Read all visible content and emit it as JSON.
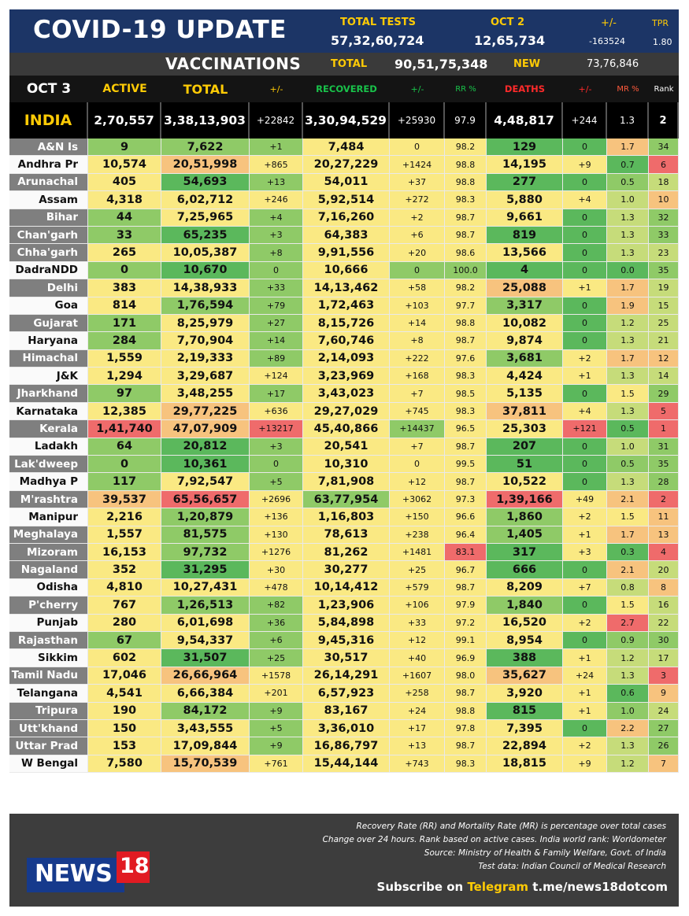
{
  "header": {
    "title": "COVID-19 UPDATE",
    "total_tests_label": "TOTAL TESTS",
    "total_tests_value": "57,32,60,724",
    "oct2_label": "OCT 2",
    "oct2_value": "12,65,734",
    "change_label": "+/-",
    "change_value": "-163524",
    "tpr_label": "TPR",
    "tpr_value": "1.80"
  },
  "vaccinations": {
    "label": "VACCINATIONS",
    "total_label": "TOTAL",
    "total_value": "90,51,75,348",
    "new_label": "NEW",
    "new_value": "73,76,846"
  },
  "columns": {
    "date": "OCT 3",
    "active": "ACTIVE",
    "total": "TOTAL",
    "change1": "+/-",
    "recovered": "RECOVERED",
    "change2": "+/-",
    "rr": "RR %",
    "deaths": "DEATHS",
    "change3": "+/-",
    "mr": "MR %",
    "rank": "Rank"
  },
  "colors": {
    "active_header": "#ffcb05",
    "total_header": "#ffcb05",
    "recovered_header": "#19c24a",
    "deaths_header": "#ff2a2a",
    "mr_header": "#ff5a3c",
    "dark_green": "#5bb85c",
    "green": "#8fca67",
    "light_green": "#c6dc7a",
    "yellow": "#fae983",
    "orange": "#f7c37e",
    "red": "#ef6b6b",
    "name_grey": "#7f7f7f"
  },
  "chart_data": {
    "type": "table",
    "title": "COVID-19 UPDATE",
    "india": {
      "name": "INDIA",
      "active": "2,70,557",
      "total": "3,38,13,903",
      "change1": "+22842",
      "recovered": "3,30,94,529",
      "change2": "+25930",
      "rr": "97.9",
      "deaths": "4,48,817",
      "change3": "+244",
      "mr": "1.3",
      "rank": "2"
    },
    "rows": [
      [
        "A&N Is",
        "9",
        "7,622",
        "+1",
        "7,484",
        "0",
        "98.2",
        "129",
        "0",
        "1.7",
        "34"
      ],
      [
        "Andhra Pr",
        "10,574",
        "20,51,998",
        "+865",
        "20,27,229",
        "+1424",
        "98.8",
        "14,195",
        "+9",
        "0.7",
        "6"
      ],
      [
        "Arunachal",
        "405",
        "54,693",
        "+13",
        "54,011",
        "+37",
        "98.8",
        "277",
        "0",
        "0.5",
        "18"
      ],
      [
        "Assam",
        "4,318",
        "6,02,712",
        "+246",
        "5,92,514",
        "+272",
        "98.3",
        "5,880",
        "+4",
        "1.0",
        "10"
      ],
      [
        "Bihar",
        "44",
        "7,25,965",
        "+4",
        "7,16,260",
        "+2",
        "98.7",
        "9,661",
        "0",
        "1.3",
        "32"
      ],
      [
        "Chan'garh",
        "33",
        "65,235",
        "+3",
        "64,383",
        "+6",
        "98.7",
        "819",
        "0",
        "1.3",
        "33"
      ],
      [
        "Chha'garh",
        "265",
        "10,05,387",
        "+8",
        "9,91,556",
        "+20",
        "98.6",
        "13,566",
        "0",
        "1.3",
        "23"
      ],
      [
        "DadraNDD",
        "0",
        "10,670",
        "0",
        "10,666",
        "0",
        "100.0",
        "4",
        "0",
        "0.0",
        "35"
      ],
      [
        "Delhi",
        "383",
        "14,38,933",
        "+33",
        "14,13,462",
        "+58",
        "98.2",
        "25,088",
        "+1",
        "1.7",
        "19"
      ],
      [
        "Goa",
        "814",
        "1,76,594",
        "+79",
        "1,72,463",
        "+103",
        "97.7",
        "3,317",
        "0",
        "1.9",
        "15"
      ],
      [
        "Gujarat",
        "171",
        "8,25,979",
        "+27",
        "8,15,726",
        "+14",
        "98.8",
        "10,082",
        "0",
        "1.2",
        "25"
      ],
      [
        "Haryana",
        "284",
        "7,70,904",
        "+14",
        "7,60,746",
        "+8",
        "98.7",
        "9,874",
        "0",
        "1.3",
        "21"
      ],
      [
        "Himachal",
        "1,559",
        "2,19,333",
        "+89",
        "2,14,093",
        "+222",
        "97.6",
        "3,681",
        "+2",
        "1.7",
        "12"
      ],
      [
        "J&K",
        "1,294",
        "3,29,687",
        "+124",
        "3,23,969",
        "+168",
        "98.3",
        "4,424",
        "+1",
        "1.3",
        "14"
      ],
      [
        "Jharkhand",
        "97",
        "3,48,255",
        "+17",
        "3,43,023",
        "+7",
        "98.5",
        "5,135",
        "0",
        "1.5",
        "29"
      ],
      [
        "Karnataka",
        "12,385",
        "29,77,225",
        "+636",
        "29,27,029",
        "+745",
        "98.3",
        "37,811",
        "+4",
        "1.3",
        "5"
      ],
      [
        "Kerala",
        "1,41,740",
        "47,07,909",
        "+13217",
        "45,40,866",
        "+14437",
        "96.5",
        "25,303",
        "+121",
        "0.5",
        "1"
      ],
      [
        "Ladakh",
        "64",
        "20,812",
        "+3",
        "20,541",
        "+7",
        "98.7",
        "207",
        "0",
        "1.0",
        "31"
      ],
      [
        "Lak'dweep",
        "0",
        "10,361",
        "0",
        "10,310",
        "0",
        "99.5",
        "51",
        "0",
        "0.5",
        "35"
      ],
      [
        "Madhya P",
        "117",
        "7,92,547",
        "+5",
        "7,81,908",
        "+12",
        "98.7",
        "10,522",
        "0",
        "1.3",
        "28"
      ],
      [
        "M'rashtra",
        "39,537",
        "65,56,657",
        "+2696",
        "63,77,954",
        "+3062",
        "97.3",
        "1,39,166",
        "+49",
        "2.1",
        "2"
      ],
      [
        "Manipur",
        "2,216",
        "1,20,879",
        "+136",
        "1,16,803",
        "+150",
        "96.6",
        "1,860",
        "+2",
        "1.5",
        "11"
      ],
      [
        "Meghalaya",
        "1,557",
        "81,575",
        "+130",
        "78,613",
        "+238",
        "96.4",
        "1,405",
        "+1",
        "1.7",
        "13"
      ],
      [
        "Mizoram",
        "16,153",
        "97,732",
        "+1276",
        "81,262",
        "+1481",
        "83.1",
        "317",
        "+3",
        "0.3",
        "4"
      ],
      [
        "Nagaland",
        "352",
        "31,295",
        "+30",
        "30,277",
        "+25",
        "96.7",
        "666",
        "0",
        "2.1",
        "20"
      ],
      [
        "Odisha",
        "4,810",
        "10,27,431",
        "+478",
        "10,14,412",
        "+579",
        "98.7",
        "8,209",
        "+7",
        "0.8",
        "8"
      ],
      [
        "P'cherry",
        "767",
        "1,26,513",
        "+82",
        "1,23,906",
        "+106",
        "97.9",
        "1,840",
        "0",
        "1.5",
        "16"
      ],
      [
        "Punjab",
        "280",
        "6,01,698",
        "+36",
        "5,84,898",
        "+33",
        "97.2",
        "16,520",
        "+2",
        "2.7",
        "22"
      ],
      [
        "Rajasthan",
        "67",
        "9,54,337",
        "+6",
        "9,45,316",
        "+12",
        "99.1",
        "8,954",
        "0",
        "0.9",
        "30"
      ],
      [
        "Sikkim",
        "602",
        "31,507",
        "+25",
        "30,517",
        "+40",
        "96.9",
        "388",
        "+1",
        "1.2",
        "17"
      ],
      [
        "Tamil Nadu",
        "17,046",
        "26,66,964",
        "+1578",
        "26,14,291",
        "+1607",
        "98.0",
        "35,627",
        "+24",
        "1.3",
        "3"
      ],
      [
        "Telangana",
        "4,541",
        "6,66,384",
        "+201",
        "6,57,923",
        "+258",
        "98.7",
        "3,920",
        "+1",
        "0.6",
        "9"
      ],
      [
        "Tripura",
        "190",
        "84,172",
        "+9",
        "83,167",
        "+24",
        "98.8",
        "815",
        "+1",
        "1.0",
        "24"
      ],
      [
        "Utt'khand",
        "150",
        "3,43,555",
        "+5",
        "3,36,010",
        "+17",
        "97.8",
        "7,395",
        "0",
        "2.2",
        "27"
      ],
      [
        "Uttar Prad",
        "153",
        "17,09,844",
        "+9",
        "16,86,797",
        "+13",
        "98.7",
        "22,894",
        "+2",
        "1.3",
        "26"
      ],
      [
        "W Bengal",
        "7,580",
        "15,70,539",
        "+761",
        "15,44,144",
        "+743",
        "98.3",
        "18,815",
        "+9",
        "1.2",
        "7"
      ]
    ],
    "colors": [
      [
        "G",
        "g",
        "g",
        "g",
        "y",
        "y",
        "y",
        "G",
        "G",
        "o",
        "g"
      ],
      [
        "W",
        "y",
        "o",
        "y",
        "y",
        "y",
        "y",
        "y",
        "y",
        "G",
        "r"
      ],
      [
        "G",
        "y",
        "G",
        "g",
        "y",
        "y",
        "y",
        "G",
        "G",
        "g",
        "l"
      ],
      [
        "W",
        "y",
        "y",
        "y",
        "y",
        "y",
        "y",
        "y",
        "y",
        "l",
        "o"
      ],
      [
        "G",
        "g",
        "y",
        "g",
        "y",
        "y",
        "y",
        "y",
        "G",
        "l",
        "g"
      ],
      [
        "G",
        "g",
        "G",
        "g",
        "y",
        "y",
        "y",
        "G",
        "G",
        "l",
        "g"
      ],
      [
        "G",
        "y",
        "y",
        "g",
        "y",
        "y",
        "y",
        "y",
        "G",
        "l",
        "l"
      ],
      [
        "W",
        "g",
        "G",
        "g",
        "y",
        "g",
        "g",
        "G",
        "G",
        "G",
        "g"
      ],
      [
        "G",
        "y",
        "y",
        "g",
        "y",
        "y",
        "y",
        "o",
        "y",
        "o",
        "l"
      ],
      [
        "W",
        "y",
        "g",
        "g",
        "y",
        "y",
        "y",
        "g",
        "G",
        "o",
        "l"
      ],
      [
        "G",
        "g",
        "y",
        "g",
        "y",
        "y",
        "y",
        "y",
        "G",
        "l",
        "l"
      ],
      [
        "W",
        "g",
        "y",
        "g",
        "y",
        "y",
        "y",
        "y",
        "G",
        "l",
        "l"
      ],
      [
        "G",
        "y",
        "y",
        "g",
        "y",
        "y",
        "y",
        "g",
        "y",
        "o",
        "o"
      ],
      [
        "W",
        "y",
        "y",
        "y",
        "y",
        "y",
        "y",
        "y",
        "y",
        "l",
        "l"
      ],
      [
        "G",
        "g",
        "y",
        "g",
        "y",
        "y",
        "y",
        "y",
        "G",
        "y",
        "g"
      ],
      [
        "W",
        "y",
        "o",
        "y",
        "y",
        "y",
        "y",
        "o",
        "y",
        "l",
        "r"
      ],
      [
        "G",
        "r",
        "o",
        "r",
        "y",
        "g",
        "y",
        "y",
        "r",
        "G",
        "r"
      ],
      [
        "W",
        "g",
        "G",
        "g",
        "y",
        "y",
        "y",
        "G",
        "G",
        "l",
        "g"
      ],
      [
        "G",
        "g",
        "G",
        "g",
        "y",
        "y",
        "y",
        "G",
        "G",
        "g",
        "g"
      ],
      [
        "W",
        "g",
        "y",
        "g",
        "y",
        "y",
        "y",
        "y",
        "G",
        "l",
        "g"
      ],
      [
        "G",
        "o",
        "r",
        "y",
        "g",
        "y",
        "y",
        "r",
        "y",
        "o",
        "r"
      ],
      [
        "W",
        "y",
        "g",
        "y",
        "y",
        "y",
        "y",
        "g",
        "y",
        "y",
        "o"
      ],
      [
        "G",
        "y",
        "g",
        "y",
        "y",
        "y",
        "y",
        "g",
        "y",
        "o",
        "o"
      ],
      [
        "G",
        "y",
        "g",
        "y",
        "y",
        "y",
        "r",
        "G",
        "y",
        "G",
        "r"
      ],
      [
        "G",
        "y",
        "G",
        "y",
        "y",
        "y",
        "y",
        "G",
        "G",
        "o",
        "l"
      ],
      [
        "W",
        "y",
        "y",
        "y",
        "y",
        "y",
        "y",
        "y",
        "y",
        "l",
        "o"
      ],
      [
        "G",
        "y",
        "g",
        "g",
        "y",
        "y",
        "y",
        "g",
        "G",
        "y",
        "l"
      ],
      [
        "W",
        "y",
        "y",
        "g",
        "y",
        "y",
        "y",
        "y",
        "y",
        "r",
        "l"
      ],
      [
        "G",
        "g",
        "y",
        "g",
        "y",
        "y",
        "y",
        "y",
        "G",
        "g",
        "g"
      ],
      [
        "W",
        "y",
        "G",
        "g",
        "y",
        "y",
        "y",
        "G",
        "y",
        "l",
        "l"
      ],
      [
        "G",
        "y",
        "o",
        "y",
        "y",
        "y",
        "y",
        "o",
        "y",
        "l",
        "r"
      ],
      [
        "W",
        "y",
        "y",
        "y",
        "y",
        "y",
        "y",
        "y",
        "y",
        "G",
        "o"
      ],
      [
        "G",
        "y",
        "g",
        "g",
        "y",
        "y",
        "y",
        "G",
        "y",
        "g",
        "l"
      ],
      [
        "G",
        "y",
        "y",
        "g",
        "y",
        "y",
        "y",
        "y",
        "G",
        "o",
        "g"
      ],
      [
        "G",
        "y",
        "y",
        "g",
        "y",
        "y",
        "y",
        "y",
        "y",
        "l",
        "g"
      ],
      [
        "W",
        "y",
        "o",
        "y",
        "y",
        "y",
        "y",
        "y",
        "y",
        "l",
        "o"
      ]
    ]
  },
  "footer": {
    "note1": "Recovery Rate (RR) and Mortality Rate (MR) is percentage over total cases",
    "note2": "Change over 24 hours. Rank based on active cases. India world rank: Worldometer",
    "note3": "Source: Ministry of Health & Family Welfare, Govt. of India",
    "note4": "Test data: Indian Council of Medical Research",
    "subscribe_pre": "Subscribe on ",
    "subscribe_telegram": "Telegram",
    "subscribe_link": " t.me/news18dotcom",
    "logo_news": "NEWS",
    "logo_18": "18"
  }
}
